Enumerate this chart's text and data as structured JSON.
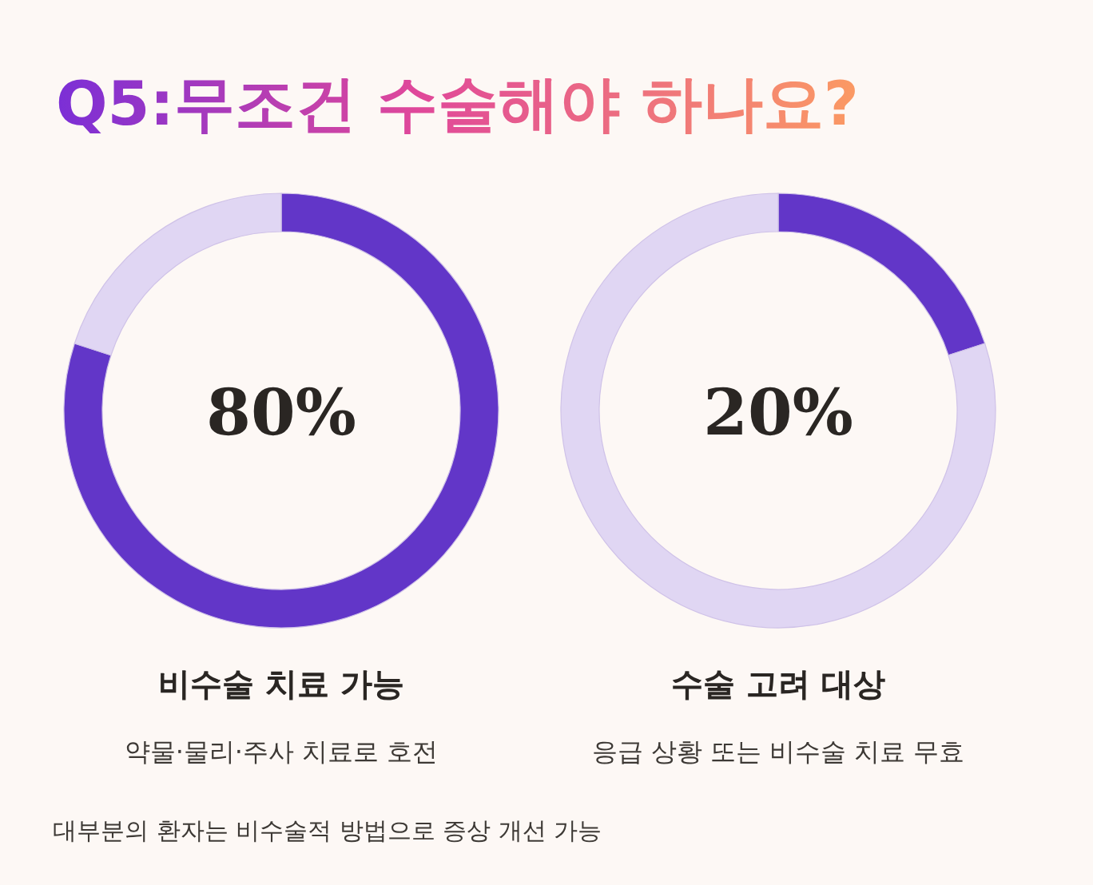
{
  "chart_data": [
    {
      "type": "donut",
      "title": "Q5:무조건 수술해야 하나요?",
      "subtitle": "비수술 치료 가능",
      "annotations": [
        "80%",
        "약물·물리·주사 치료로 호전",
        "대부분의 환자는 비수술적 방법으로 증상 개선 가능"
      ],
      "categories": [
        null,
        null
      ],
      "values": [
        80,
        20
      ],
      "colors": [
        "#6236c8",
        "#e0d6f3"
      ]
    },
    {
      "type": "donut",
      "subtitle": "수술 고려 대상",
      "annotations": [
        "20%",
        "응급 상황 또는 비수술 치료 무효"
      ],
      "categories": [
        null,
        null
      ],
      "values": [
        20,
        80
      ],
      "colors": [
        "#6236c8",
        "#e0d6f3"
      ]
    }
  ]
}
